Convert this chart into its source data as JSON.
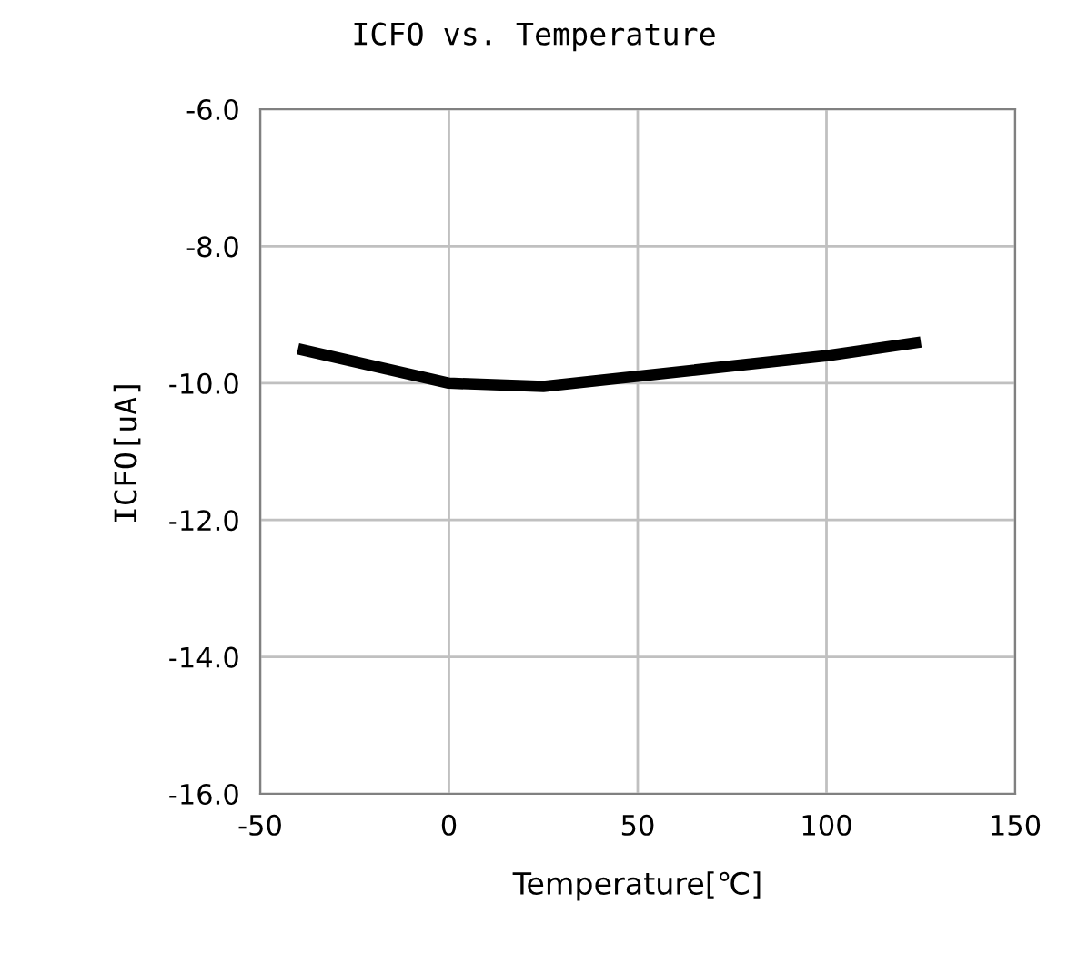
{
  "chart_data": {
    "type": "line",
    "title": "ICFO vs. Temperature",
    "xlabel": "Temperature[℃]",
    "ylabel": "ICFO[uA]",
    "x": [
      -40,
      0,
      25,
      100,
      125
    ],
    "series": [
      {
        "color": "#000000",
        "values": [
          -9.5,
          -10.0,
          -10.05,
          -9.6,
          -9.4
        ]
      }
    ],
    "xlim": [
      -50,
      150
    ],
    "xticks": [
      -50,
      0,
      50,
      100,
      150
    ],
    "ylim": [
      -16,
      -6
    ],
    "yticks": [
      {
        "value": -16,
        "label": "-16.0"
      },
      {
        "value": -14,
        "label": "-14.0"
      },
      {
        "value": -12,
        "label": "-12.0"
      },
      {
        "value": -10,
        "label": "-10.0"
      },
      {
        "value": -8,
        "label": "-8.0"
      },
      {
        "value": -6,
        "label": "-6.0"
      }
    ],
    "grid": true,
    "marker": "none",
    "line_style": "solid"
  }
}
